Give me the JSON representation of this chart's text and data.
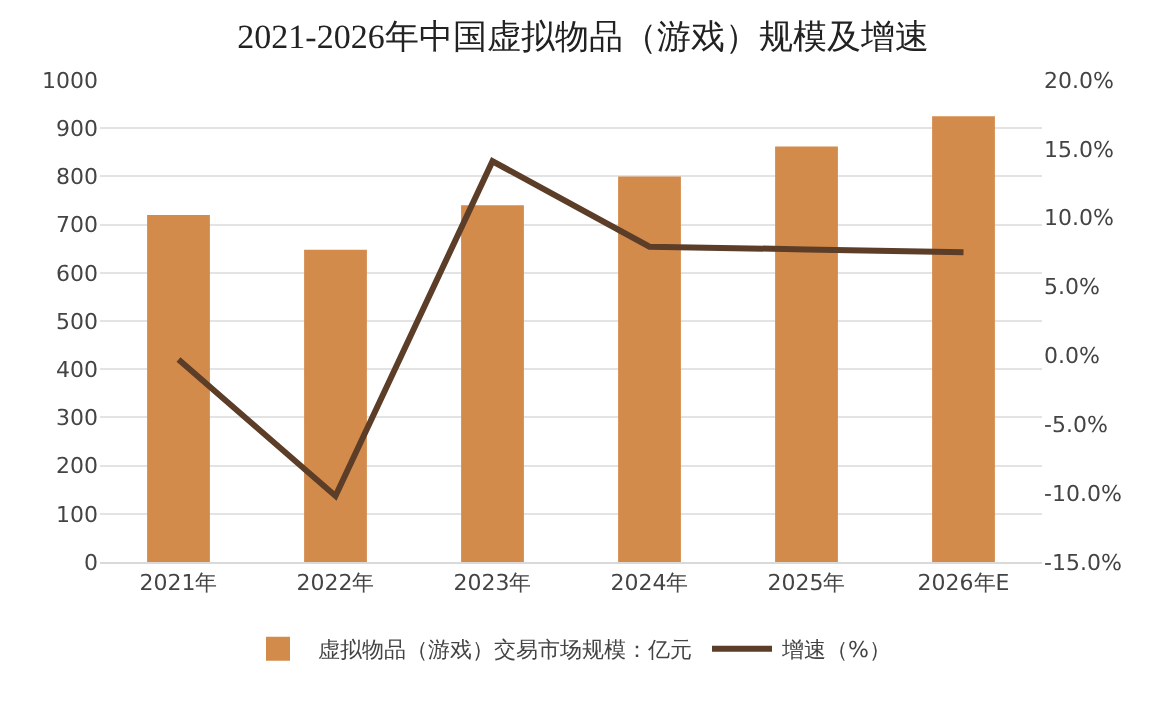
{
  "chart_data": {
    "type": "bar",
    "title": "2021-2026年中国虚拟物品（游戏）规模及增速",
    "categories": [
      "2021年",
      "2022年",
      "2023年",
      "2024年",
      "2025年",
      "2026年E"
    ],
    "series": [
      {
        "name": "虚拟物品（游戏）交易市场规模：亿元",
        "color": "#d38b4c",
        "values": [
          720,
          648,
          740,
          800,
          862,
          925
        ]
      },
      {
        "name": "增速（%）",
        "type": "line",
        "axis": "y2",
        "color": "#5c3d28",
        "values": [
          -0.3,
          -10.2,
          14.1,
          7.9,
          7.7,
          7.5
        ]
      }
    ],
    "ylim": [
      0,
      1000
    ],
    "yticks": [
      0,
      100,
      200,
      300,
      400,
      500,
      600,
      700,
      800,
      900,
      1000
    ],
    "y2lim": [
      -15,
      20
    ],
    "y2ticks": [
      {
        "value": -15,
        "label": "-15.0%"
      },
      {
        "value": -10,
        "label": "-10.0%"
      },
      {
        "value": -5,
        "label": "-5.0%"
      },
      {
        "value": 0,
        "label": "0.0%"
      },
      {
        "value": 5,
        "label": "5.0%"
      },
      {
        "value": 10,
        "label": "10.0%"
      },
      {
        "value": 15,
        "label": "15.0%"
      },
      {
        "value": 20,
        "label": "20.0%"
      }
    ],
    "grid": "y",
    "legend": "bottom",
    "marker": "none",
    "line_style": "solid"
  }
}
